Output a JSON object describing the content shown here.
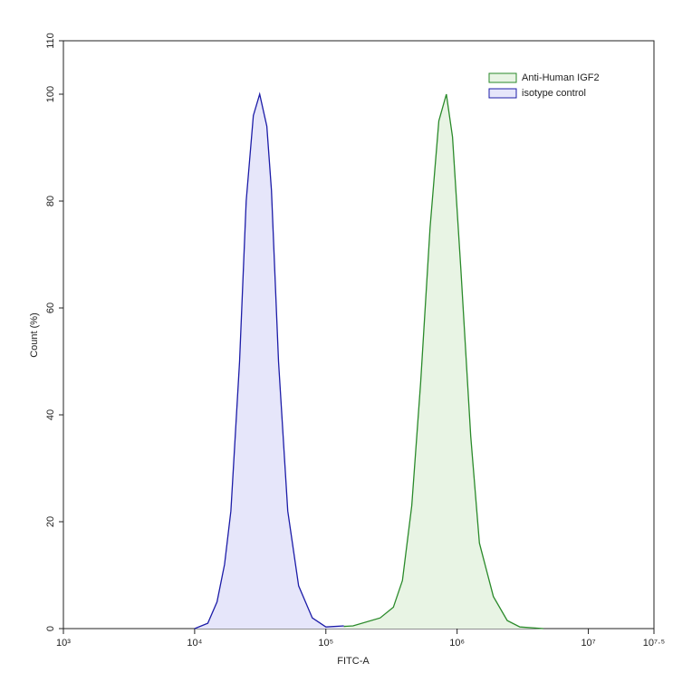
{
  "chart_data": {
    "type": "line",
    "xlabel": "FITC-A",
    "ylabel": "Count  (%)",
    "xscale": "log",
    "xlim": [
      1000,
      31622777
    ],
    "xticks": [
      {
        "value": 1000,
        "label": "10³"
      },
      {
        "value": 10000,
        "label": "10⁴"
      },
      {
        "value": 100000,
        "label": "10⁵"
      },
      {
        "value": 1000000,
        "label": "10⁶"
      },
      {
        "value": 10000000,
        "label": "10⁷"
      },
      {
        "value": 31622777,
        "label": "10⁷·⁵"
      }
    ],
    "ylim": [
      0,
      110
    ],
    "yticks": [
      0,
      20,
      40,
      60,
      80,
      100,
      110
    ],
    "legend": "upper right",
    "series": [
      {
        "name": "Anti-Human IGF2",
        "color": "#2a8a2a",
        "fill": "#e8f4e4",
        "x": [
          117000,
          161000,
          259000,
          327000,
          383000,
          451000,
          527000,
          622000,
          726000,
          828000,
          922000,
          1070000,
          1270000,
          1480000,
          1890000,
          2410000,
          3010000,
          4540000
        ],
        "values": [
          0.3,
          0.5,
          2,
          4,
          9,
          23,
          46,
          75,
          95,
          100,
          92,
          67,
          36,
          16,
          6,
          1.5,
          0.3,
          0
        ]
      },
      {
        "name": "isotype control",
        "color": "#1c1ca8",
        "fill": "#e6e6fa",
        "x": [
          10000,
          12600,
          14800,
          16900,
          18900,
          22000,
          24700,
          28000,
          31300,
          35500,
          38500,
          43600,
          51200,
          62000,
          78800,
          100000,
          137000
        ],
        "values": [
          0,
          1,
          5,
          12,
          22,
          50,
          80,
          96,
          100,
          94,
          82,
          50,
          22,
          8,
          2,
          0.3,
          0.5
        ]
      }
    ]
  }
}
